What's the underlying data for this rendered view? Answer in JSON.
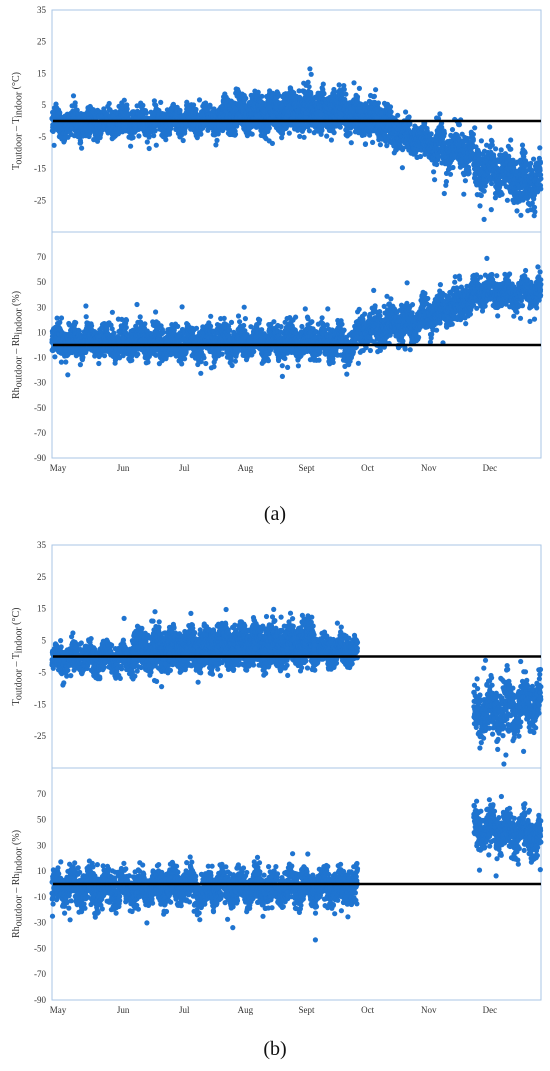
{
  "captions": {
    "a": "(a)",
    "b": "(b)"
  },
  "colors": {
    "points": "#1f74d0",
    "zero_line": "#000000",
    "frame": "#a9c6e6"
  },
  "chart_data": [
    {
      "id": "a-temperature",
      "type": "scatter",
      "ylabel": {
        "main": "T",
        "sub1": "outdoor",
        "mid": " – T",
        "sub2": "indoor",
        "unit": " (°C)"
      },
      "ylim": [
        -35,
        35
      ],
      "yticks": [
        "35",
        "25",
        "15",
        "5",
        "-5",
        "-15",
        "-25"
      ],
      "grid": false,
      "reference_line": 0,
      "segments": [
        {
          "from": 0,
          "to": 5.5,
          "center_start": -1,
          "center_end": 2,
          "spread": 6
        },
        {
          "from": 2.8,
          "to": 4.8,
          "center_start": 3,
          "center_end": 5,
          "spread": 7
        },
        {
          "from": 4.8,
          "to": 6.2,
          "center_start": 2,
          "center_end": -7,
          "spread": 7
        },
        {
          "from": 6.2,
          "to": 6.9,
          "center_start": -8,
          "center_end": -10,
          "spread": 9
        },
        {
          "from": 6.9,
          "to": 8.0,
          "center_start": -14,
          "center_end": -20,
          "spread": 10
        }
      ]
    },
    {
      "id": "a-humidity",
      "type": "scatter",
      "ylabel": {
        "main": "Rh",
        "sub1": "outdoor",
        "mid": " – Rh",
        "sub2": "indoor",
        "unit": " (%)"
      },
      "ylim": [
        -90,
        90
      ],
      "yticks": [
        "70",
        "50",
        "30",
        "10",
        "-10",
        "-30",
        "-50",
        "-70",
        "-90"
      ],
      "grid": false,
      "reference_line": 0,
      "x_categories": [
        "May",
        "Jun",
        "Jul",
        "Aug",
        "Sept",
        "Oct",
        "Nov",
        "Dec"
      ],
      "segments": [
        {
          "from": 0,
          "to": 5.0,
          "center_start": 3,
          "center_end": 2,
          "spread": 18
        },
        {
          "from": 5.0,
          "to": 6.0,
          "center_start": 10,
          "center_end": 20,
          "spread": 20
        },
        {
          "from": 6.0,
          "to": 6.9,
          "center_start": 20,
          "center_end": 38,
          "spread": 20
        },
        {
          "from": 6.9,
          "to": 8.0,
          "center_start": 42,
          "center_end": 42,
          "spread": 16
        }
      ]
    },
    {
      "id": "b-temperature",
      "type": "scatter",
      "ylabel": {
        "main": "T",
        "sub1": "outdoor",
        "mid": " – T",
        "sub2": "indoor",
        "unit": " (°C)"
      },
      "ylim": [
        -35,
        35
      ],
      "yticks": [
        "35",
        "25",
        "15",
        "5",
        "-5",
        "-15",
        "-25"
      ],
      "grid": false,
      "reference_line": 0,
      "segments": [
        {
          "from": 0,
          "to": 5.0,
          "center_start": -1,
          "center_end": 2,
          "spread": 6
        },
        {
          "from": 1.3,
          "to": 4.3,
          "center_start": 3,
          "center_end": 6,
          "spread": 7
        },
        {
          "from": 6.9,
          "to": 8.0,
          "center_start": -18,
          "center_end": -14,
          "spread": 12
        }
      ]
    },
    {
      "id": "b-humidity",
      "type": "scatter",
      "ylabel": {
        "main": "Rh",
        "sub1": "outdoor",
        "mid": " – Rh",
        "sub2": "indoor",
        "unit": " (%)"
      },
      "ylim": [
        -90,
        90
      ],
      "yticks": [
        "70",
        "50",
        "30",
        "10",
        "-10",
        "-30",
        "-50",
        "-70",
        "-90"
      ],
      "grid": false,
      "reference_line": 0,
      "x_categories": [
        "May",
        "Jun",
        "Jul",
        "Aug",
        "Sept",
        "Oct",
        "Nov",
        "Dec"
      ],
      "segments": [
        {
          "from": 0,
          "to": 5.0,
          "center_start": -3,
          "center_end": -3,
          "spread": 20
        },
        {
          "from": 6.9,
          "to": 8.0,
          "center_start": 45,
          "center_end": 35,
          "spread": 22
        }
      ]
    }
  ]
}
